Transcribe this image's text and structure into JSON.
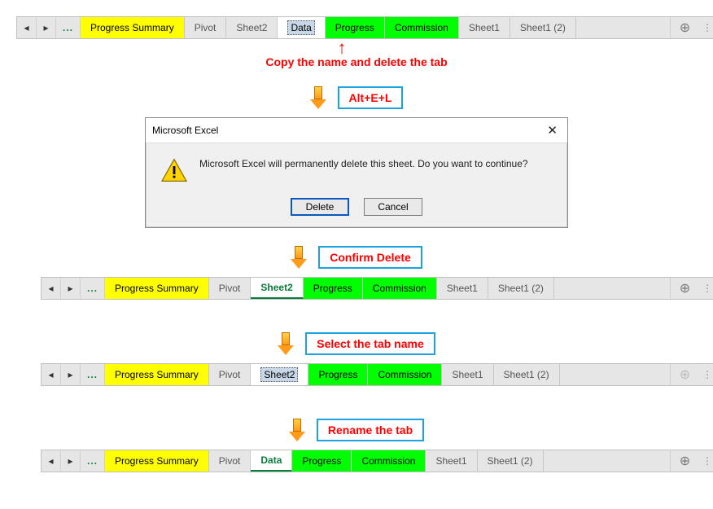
{
  "step1": {
    "tabs": [
      {
        "label": "Progress Summary",
        "style": "yellow"
      },
      {
        "label": "Pivot",
        "style": "plain"
      },
      {
        "label": "Sheet2",
        "style": "plain"
      },
      {
        "label": "Data",
        "style": "white",
        "editing": true,
        "highlight": true
      },
      {
        "label": "Progress",
        "style": "green"
      },
      {
        "label": "Commission",
        "style": "green"
      },
      {
        "label": "Sheet1",
        "style": "plain"
      },
      {
        "label": "Sheet1 (2)",
        "style": "plain"
      }
    ],
    "caption": "Copy the name and delete the tab"
  },
  "step2": {
    "label": "Alt+E+L",
    "dialog": {
      "title": "Microsoft Excel",
      "message": "Microsoft Excel will permanently delete this sheet. Do you want to continue?",
      "primary": "Delete",
      "secondary": "Cancel"
    }
  },
  "step3": {
    "label": "Confirm Delete",
    "tabs": [
      {
        "label": "Progress Summary",
        "style": "yellow"
      },
      {
        "label": "Pivot",
        "style": "plain"
      },
      {
        "label": "Sheet2",
        "style": "active"
      },
      {
        "label": "Progress",
        "style": "green"
      },
      {
        "label": "Commission",
        "style": "green"
      },
      {
        "label": "Sheet1",
        "style": "plain"
      },
      {
        "label": "Sheet1 (2)",
        "style": "plain"
      }
    ]
  },
  "step4": {
    "label": "Select the tab name",
    "tabs": [
      {
        "label": "Progress Summary",
        "style": "yellow"
      },
      {
        "label": "Pivot",
        "style": "plain"
      },
      {
        "label": "Sheet2",
        "style": "white",
        "editing": true,
        "highlight": true
      },
      {
        "label": "Progress",
        "style": "green"
      },
      {
        "label": "Commission",
        "style": "green"
      },
      {
        "label": "Sheet1",
        "style": "plain"
      },
      {
        "label": "Sheet1 (2)",
        "style": "plain"
      }
    ],
    "add_disabled": true
  },
  "step5": {
    "label": "Rename the tab",
    "tabs": [
      {
        "label": "Progress Summary",
        "style": "yellow"
      },
      {
        "label": "Pivot",
        "style": "plain"
      },
      {
        "label": "Data",
        "style": "active"
      },
      {
        "label": "Progress",
        "style": "green"
      },
      {
        "label": "Commission",
        "style": "green"
      },
      {
        "label": "Sheet1",
        "style": "plain"
      },
      {
        "label": "Sheet1 (2)",
        "style": "plain"
      }
    ]
  },
  "nav": {
    "dots": "..."
  },
  "colors": {
    "yellow": "#ffff00",
    "green": "#00ff00",
    "accent": "#0a7d3d",
    "annotation_red": "#ff0000",
    "annotation_box": "#1aa3dd"
  }
}
